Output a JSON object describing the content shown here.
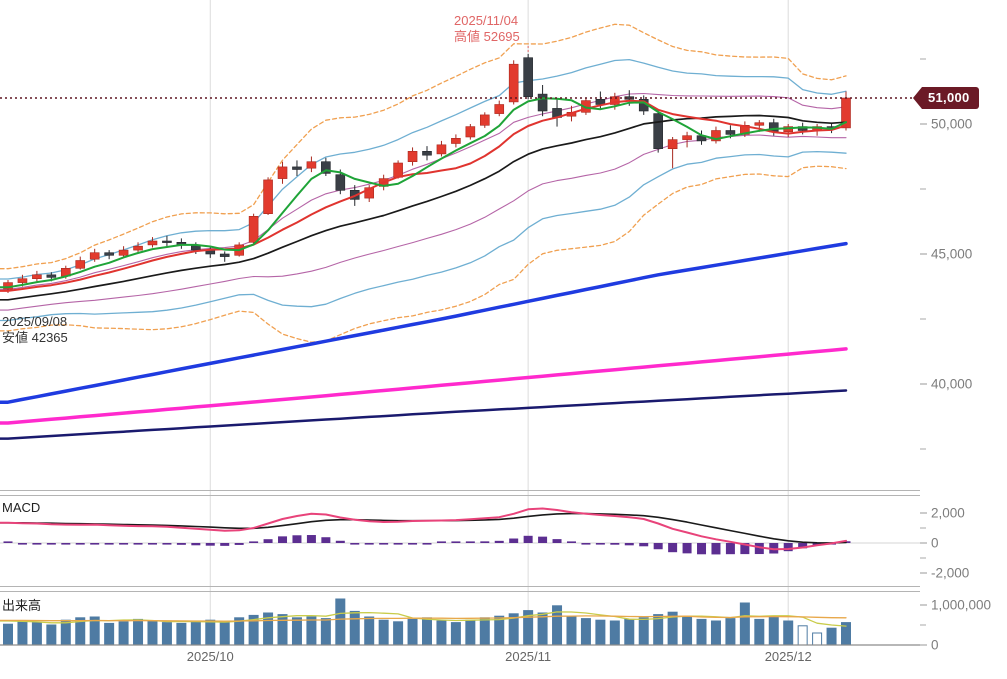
{
  "annotations": {
    "high": {
      "date": "2025/11/04",
      "label": "高値 52695",
      "color": "#e06666"
    },
    "low": {
      "date": "2025/09/08",
      "label": "安値 42365",
      "color": "#333333"
    }
  },
  "price_badge": {
    "label": "51,000",
    "value": 51000
  },
  "panel_labels": {
    "macd": "MACD",
    "volume": "出来高"
  },
  "axes": {
    "price": {
      "labeled_ticks": [
        {
          "value": 50000,
          "label": "50,000"
        },
        {
          "value": 45000,
          "label": "45,000"
        },
        {
          "value": 40000,
          "label": "40,000"
        }
      ],
      "minor_tick_values": [
        52500,
        47500,
        42500,
        37500
      ]
    },
    "macd": {
      "labeled_ticks": [
        {
          "value": 2000,
          "label": "2,000"
        },
        {
          "value": 0,
          "label": "0"
        },
        {
          "value": -2000,
          "label": "-2,000"
        }
      ],
      "minor_tick_values": [
        1000,
        -1000
      ]
    },
    "volume": {
      "labeled_ticks": [
        {
          "value": 1000000,
          "label": "1,000,000"
        },
        {
          "value": 0,
          "label": "0"
        }
      ],
      "minor_tick_values": [
        500000
      ]
    },
    "time": {
      "ticks": [
        {
          "index": 14,
          "label": "2025/10"
        },
        {
          "index": 36,
          "label": "2025/11"
        },
        {
          "index": 54,
          "label": "2025/12"
        }
      ]
    }
  },
  "chart_data": {
    "type": "candlestick",
    "panels": [
      "price",
      "macd",
      "volume"
    ],
    "price_ylim": [
      35600,
      54800
    ],
    "price_line": {
      "value": 51000
    },
    "dates": [
      "2025/09/09",
      "2025/09/10",
      "2025/09/11",
      "2025/09/12",
      "2025/09/16",
      "2025/09/17",
      "2025/09/18",
      "2025/09/19",
      "2025/09/22",
      "2025/09/24",
      "2025/09/25",
      "2025/09/26",
      "2025/09/29",
      "2025/09/30",
      "2025/10/01",
      "2025/10/02",
      "2025/10/03",
      "2025/10/06",
      "2025/10/07",
      "2025/10/08",
      "2025/10/09",
      "2025/10/10",
      "2025/10/14",
      "2025/10/15",
      "2025/10/16",
      "2025/10/17",
      "2025/10/20",
      "2025/10/21",
      "2025/10/22",
      "2025/10/23",
      "2025/10/24",
      "2025/10/27",
      "2025/10/28",
      "2025/10/29",
      "2025/10/30",
      "2025/10/31",
      "2025/11/04",
      "2025/11/05",
      "2025/11/06",
      "2025/11/07",
      "2025/11/10",
      "2025/11/11",
      "2025/11/12",
      "2025/11/13",
      "2025/11/14",
      "2025/11/17",
      "2025/11/18",
      "2025/11/19",
      "2025/11/20",
      "2025/11/21",
      "2025/11/25",
      "2025/11/26",
      "2025/11/27",
      "2025/11/28",
      "2025/12/01",
      "2025/12/02",
      "2025/12/03",
      "2025/12/04",
      "2025/12/05"
    ],
    "ohlc": [
      [
        43650,
        44000,
        43500,
        43900
      ],
      [
        43900,
        44200,
        43750,
        44050
      ],
      [
        44050,
        44350,
        43950,
        44200
      ],
      [
        44200,
        44300,
        43950,
        44100
      ],
      [
        44150,
        44550,
        44050,
        44450
      ],
      [
        44450,
        44900,
        44400,
        44750
      ],
      [
        44800,
        45200,
        44700,
        45050
      ],
      [
        45050,
        45150,
        44800,
        44950
      ],
      [
        44950,
        45300,
        44850,
        45150
      ],
      [
        45150,
        45450,
        45050,
        45300
      ],
      [
        45350,
        45650,
        45250,
        45500
      ],
      [
        45500,
        45700,
        45300,
        45450
      ],
      [
        45450,
        45600,
        45200,
        45350
      ],
      [
        45350,
        45450,
        45000,
        45150
      ],
      [
        45150,
        45250,
        44850,
        45000
      ],
      [
        45000,
        45100,
        44700,
        44900
      ],
      [
        44950,
        45450,
        44900,
        45350
      ],
      [
        45450,
        46550,
        45400,
        46450
      ],
      [
        46550,
        47950,
        46500,
        47850
      ],
      [
        47900,
        48550,
        47700,
        48350
      ],
      [
        48350,
        48600,
        48000,
        48250
      ],
      [
        48300,
        48750,
        48150,
        48550
      ],
      [
        48550,
        48700,
        48000,
        48100
      ],
      [
        48050,
        48250,
        47300,
        47450
      ],
      [
        47450,
        47650,
        46850,
        47100
      ],
      [
        47150,
        47650,
        47000,
        47550
      ],
      [
        47600,
        48050,
        47450,
        47900
      ],
      [
        47950,
        48600,
        47900,
        48500
      ],
      [
        48550,
        49100,
        48400,
        48950
      ],
      [
        48950,
        49150,
        48600,
        48800
      ],
      [
        48850,
        49350,
        48750,
        49200
      ],
      [
        49250,
        49600,
        49100,
        49450
      ],
      [
        49500,
        50000,
        49400,
        49900
      ],
      [
        49950,
        50450,
        49850,
        50350
      ],
      [
        50400,
        50900,
        50300,
        50750
      ],
      [
        50850,
        52450,
        50750,
        52300
      ],
      [
        52550,
        52695,
        50950,
        51050
      ],
      [
        51150,
        51500,
        50300,
        50500
      ],
      [
        50600,
        51000,
        49900,
        50250
      ],
      [
        50300,
        50700,
        50100,
        50450
      ],
      [
        50450,
        51000,
        50350,
        50900
      ],
      [
        50950,
        51250,
        50600,
        50750
      ],
      [
        50750,
        51200,
        50550,
        51050
      ],
      [
        51050,
        51300,
        50700,
        50950
      ],
      [
        50950,
        51100,
        50350,
        50500
      ],
      [
        50400,
        50550,
        48900,
        49050
      ],
      [
        49050,
        49500,
        48300,
        49400
      ],
      [
        49400,
        49700,
        49100,
        49550
      ],
      [
        49550,
        49750,
        49200,
        49350
      ],
      [
        49350,
        49900,
        49250,
        49750
      ],
      [
        49750,
        49950,
        49450,
        49600
      ],
      [
        49600,
        50100,
        49500,
        49950
      ],
      [
        49950,
        50150,
        49700,
        50050
      ],
      [
        50050,
        50200,
        49550,
        49700
      ],
      [
        49700,
        50000,
        49500,
        49900
      ],
      [
        49900,
        50050,
        49600,
        49750
      ],
      [
        49750,
        50000,
        49550,
        49900
      ],
      [
        49900,
        50050,
        49650,
        49800
      ],
      [
        49850,
        51250,
        49750,
        51000
      ]
    ],
    "volume": [
      520000,
      580000,
      560000,
      500000,
      620000,
      680000,
      700000,
      540000,
      580000,
      640000,
      600000,
      560000,
      540000,
      580000,
      620000,
      560000,
      680000,
      740000,
      800000,
      760000,
      680000,
      700000,
      660000,
      1150000,
      840000,
      700000,
      620000,
      580000,
      640000,
      680000,
      600000,
      560000,
      620000,
      680000,
      720000,
      780000,
      860000,
      800000,
      980000,
      700000,
      660000,
      620000,
      600000,
      640000,
      680000,
      760000,
      820000,
      700000,
      640000,
      600000,
      660000,
      1050000,
      640000,
      700000,
      600000,
      480000,
      300000,
      420000,
      560000
    ],
    "volume_hollow_indices": [
      55,
      56
    ],
    "macd_line": [
      1350,
      1320,
      1300,
      1250,
      1230,
      1220,
      1230,
      1180,
      1150,
      1130,
      1120,
      1080,
      1020,
      950,
      880,
      820,
      850,
      1000,
      1300,
      1600,
      1800,
      1950,
      1900,
      1700,
      1550,
      1450,
      1400,
      1420,
      1470,
      1480,
      1500,
      1530,
      1580,
      1650,
      1720,
      1950,
      2250,
      2300,
      2200,
      2050,
      1950,
      1870,
      1800,
      1720,
      1600,
      1300,
      950,
      700,
      450,
      250,
      80,
      -100,
      -280,
      -420,
      -400,
      -300,
      -150,
      -30,
      150
    ],
    "signal_period": 9,
    "overlays": {
      "ma_short_period": 5,
      "ma_mid_period": 10,
      "ma_long_period": 20,
      "bollinger_sigmas": [
        1,
        2,
        3
      ],
      "pre_history_closes": [
        42000,
        42100,
        42250,
        42300,
        42450,
        42500,
        42600,
        42700,
        42800,
        42850,
        42950,
        43050,
        43100,
        43200,
        43250,
        43300,
        43400,
        43450,
        43500,
        43550,
        43600,
        43650,
        43700,
        43750
      ],
      "pre_history_volume": 620000,
      "trend_lines": [
        {
          "name": "long-term-ma-blue",
          "color": "#1F3BE0",
          "width": 3.5,
          "anchors": [
            [
              0,
              39300
            ],
            [
              15,
              40900
            ],
            [
              30,
              42500
            ],
            [
              45,
              44200
            ],
            [
              58,
              45400
            ]
          ]
        },
        {
          "name": "long-term-ma-magenta",
          "color": "#FF2ACD",
          "width": 3.5,
          "anchors": [
            [
              0,
              38500
            ],
            [
              20,
              39450
            ],
            [
              40,
              40450
            ],
            [
              58,
              41350
            ]
          ]
        },
        {
          "name": "long-term-ma-navy",
          "color": "#1A1A6E",
          "width": 2.5,
          "anchors": [
            [
              0,
              37900
            ],
            [
              30,
              38900
            ],
            [
              58,
              39750
            ]
          ]
        }
      ]
    },
    "colors": {
      "up": "#E23B2E",
      "up_stroke": "#A8291F",
      "down": "#3A3F46",
      "down_stroke": "#23272C",
      "ma_short": "#1FA438",
      "ma_mid": "#E0342F",
      "ma_long": "#1A1A1A",
      "bb1": "#B565A7",
      "bb2": "#6FAFD2",
      "bb3": "#F0A050",
      "macd": "#E8437A",
      "macd_signal": "#1A1A1A",
      "macd_hist": "#5C2E91",
      "volume_bar": "#4E7BA3",
      "vol_ma_short": "#C9CC4A",
      "vol_ma_long": "#E8A84A",
      "price_line": "#5E1420",
      "badge_bg": "#6B1A26",
      "grid": "#DCDCDC",
      "axis_text": "#7D7D7D"
    }
  }
}
